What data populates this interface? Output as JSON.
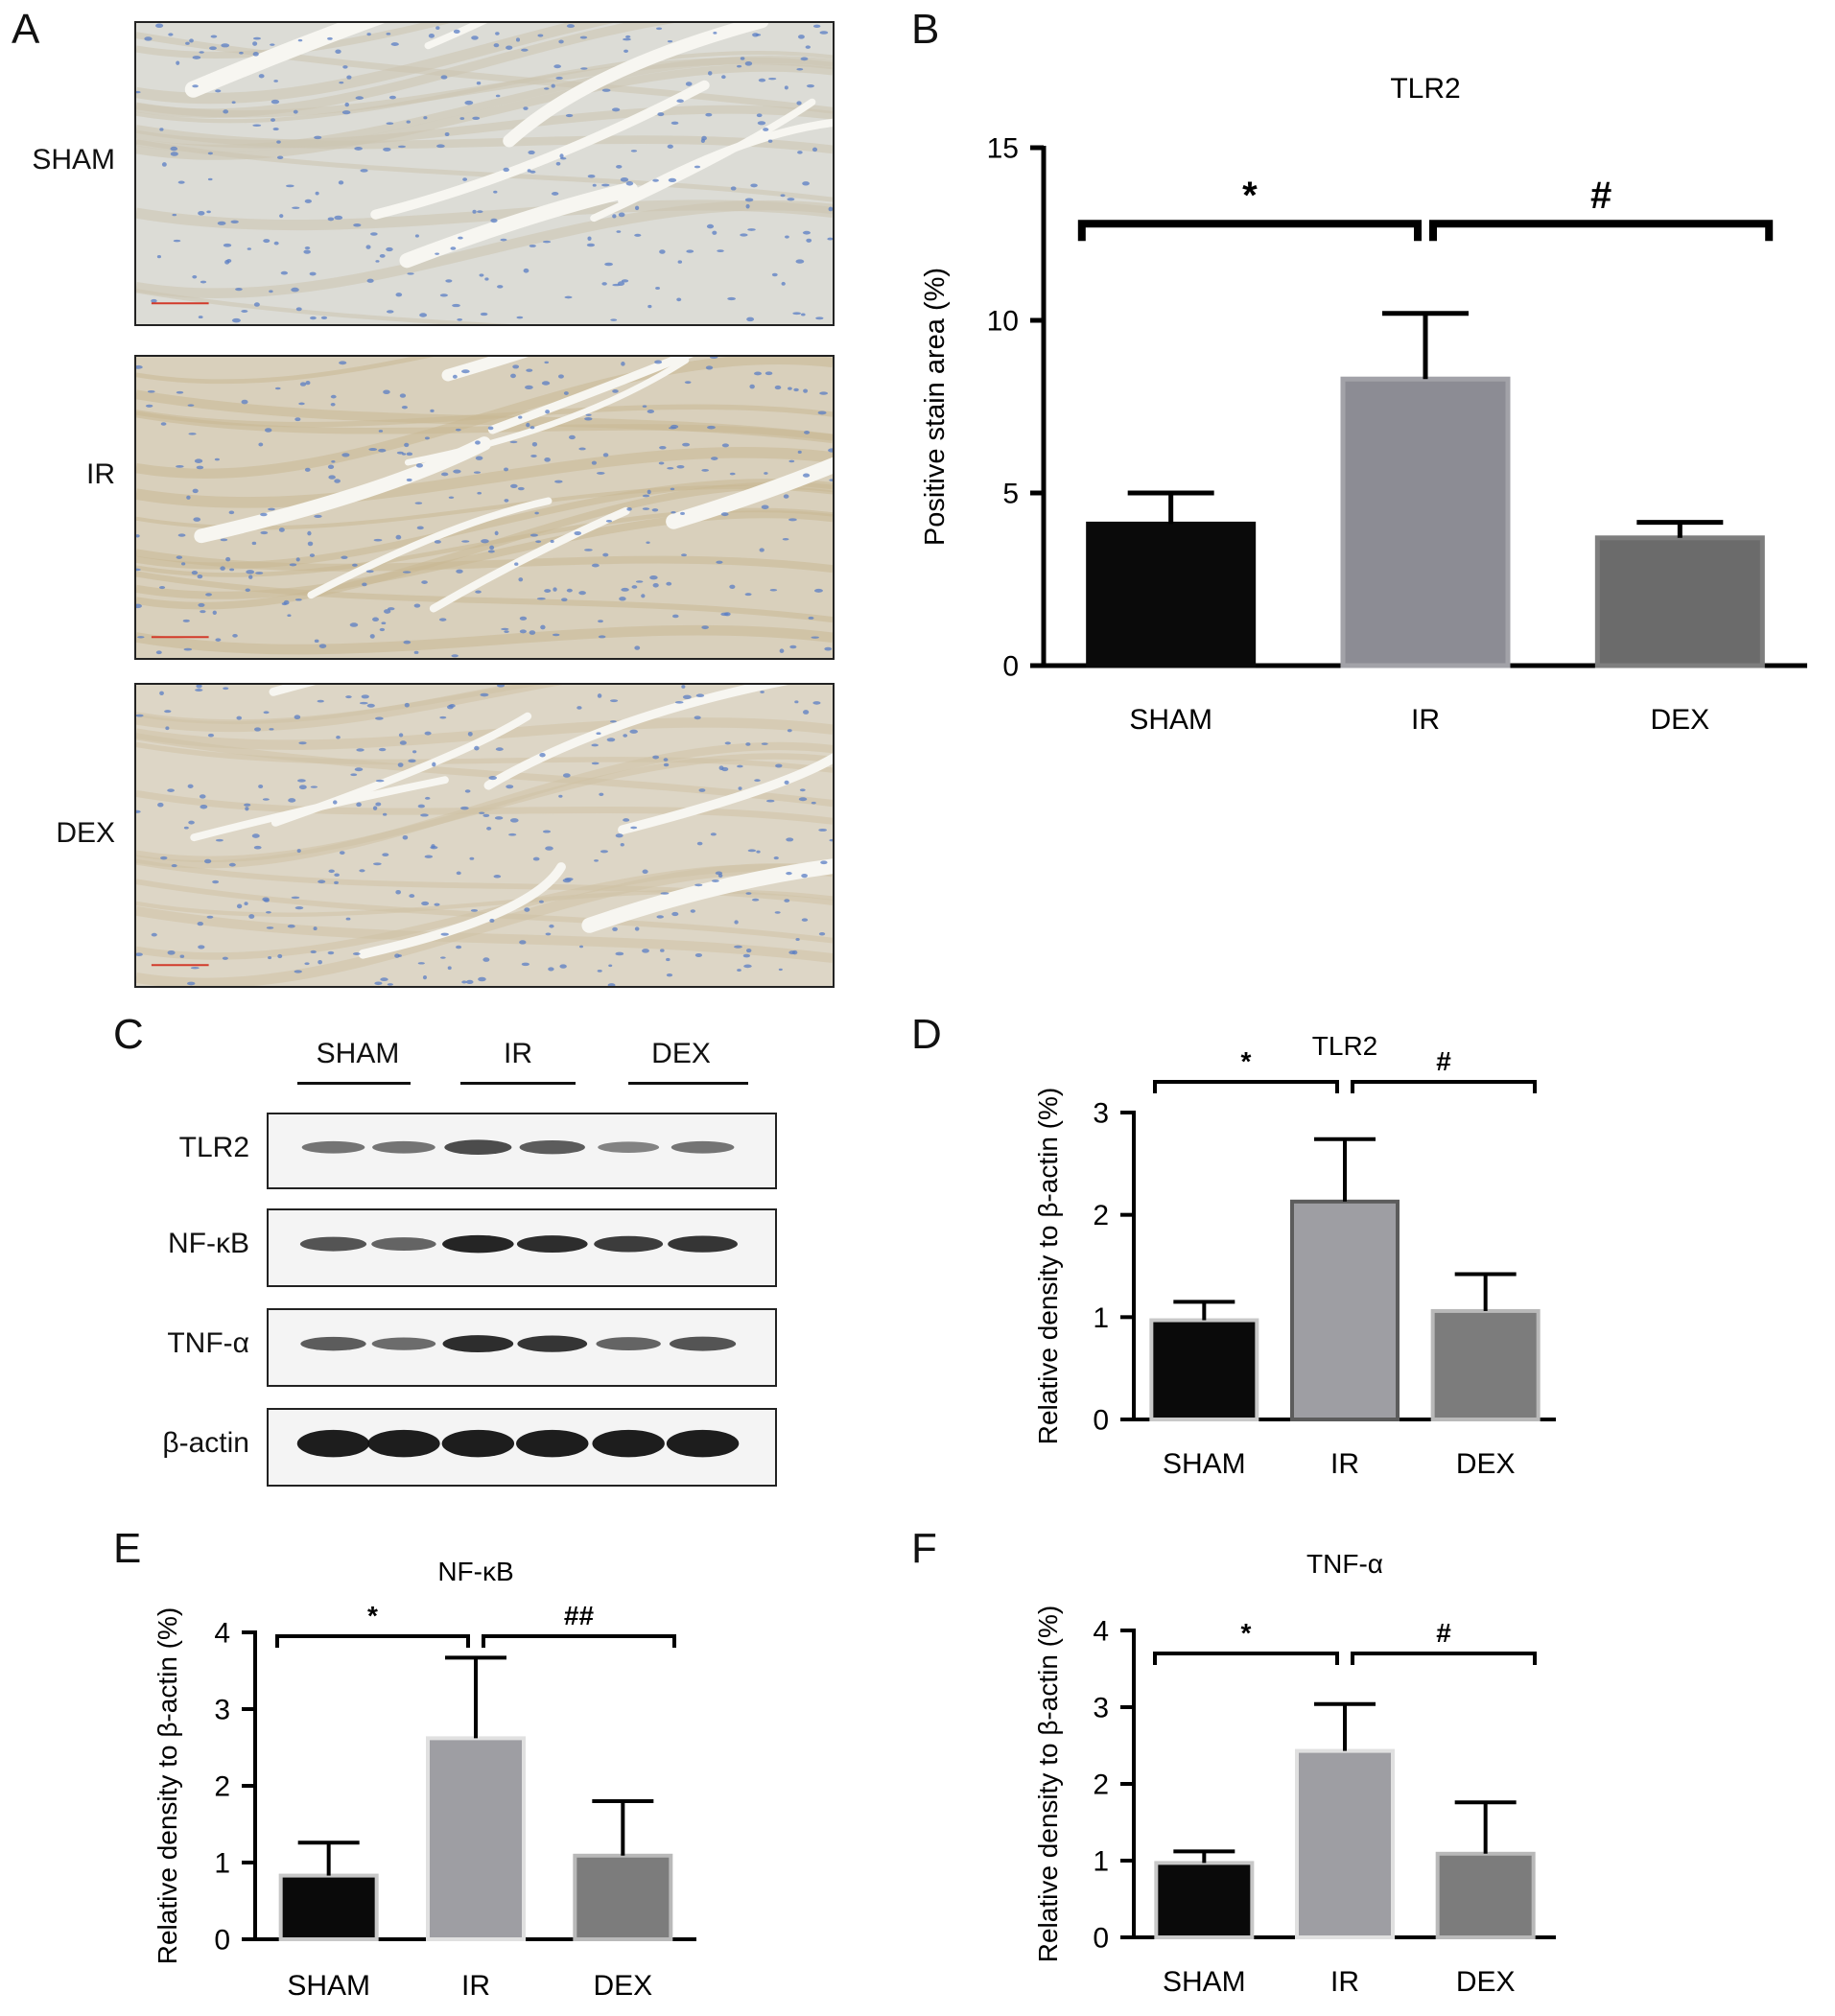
{
  "figure": {
    "panel_letters": [
      "A",
      "B",
      "C",
      "D",
      "E",
      "F"
    ],
    "panel_a": {
      "rows": [
        {
          "label": "SHAM",
          "tint": "#dcdcd6",
          "stain": "#ccc4b0"
        },
        {
          "label": "IR",
          "tint": "#d9d0bc",
          "stain": "#c9b894"
        },
        {
          "label": "DEX",
          "tint": "#ddd6c6",
          "stain": "#cfc3a6"
        }
      ],
      "nucleus_color": "#5a7ec4",
      "scale_bar_color": "#d23a2a"
    },
    "panel_c": {
      "groups": [
        "SHAM",
        "IR",
        "DEX"
      ],
      "proteins": [
        {
          "label": "TLR2",
          "intensity": [
            0.45,
            0.45,
            0.7,
            0.6,
            0.35,
            0.45
          ]
        },
        {
          "label": "NF-κB",
          "intensity": [
            0.65,
            0.55,
            0.95,
            0.9,
            0.8,
            0.85
          ]
        },
        {
          "label": "TNF-α",
          "intensity": [
            0.6,
            0.5,
            0.9,
            0.85,
            0.55,
            0.65
          ]
        },
        {
          "label": "β-actin",
          "intensity": [
            1.0,
            1.0,
            1.0,
            1.0,
            1.0,
            1.0
          ]
        }
      ]
    }
  },
  "chart_data": [
    {
      "id": "B",
      "type": "bar",
      "title": "TLR2",
      "ylabel": "Positive stain area (%)",
      "xlabel": "",
      "categories": [
        "SHAM",
        "IR",
        "DEX"
      ],
      "values": [
        4.1,
        8.3,
        3.7
      ],
      "errors": [
        0.9,
        1.9,
        0.45
      ],
      "colors": [
        "#0a0a0a",
        "#8c8c94",
        "#6b6b6b"
      ],
      "borders": [
        "#0a0a0a",
        "#a2a2a8",
        "#7e7e7e"
      ],
      "ylim": [
        0,
        15
      ],
      "yticks": [
        0,
        5,
        10,
        15
      ],
      "significance": [
        {
          "from": 0,
          "to": 1,
          "label": "*",
          "level": 12.8
        },
        {
          "from": 1,
          "to": 2,
          "label": "#",
          "level": 12.8
        }
      ]
    },
    {
      "id": "D",
      "type": "bar",
      "title": "TLR2",
      "ylabel": "Relative density to β-actin (%)",
      "xlabel": "",
      "categories": [
        "SHAM",
        "IR",
        "DEX"
      ],
      "values": [
        0.97,
        2.13,
        1.06
      ],
      "errors": [
        0.18,
        0.61,
        0.36
      ],
      "colors": [
        "#0a0a0a",
        "#9e9ea3",
        "#7c7c7c"
      ],
      "borders": [
        "#c8c8c8",
        "#5c5c5c",
        "#b9b9b9"
      ],
      "ylim": [
        0,
        3
      ],
      "yticks": [
        0,
        1,
        2,
        3
      ],
      "significance": [
        {
          "from": 0,
          "to": 1,
          "label": "*",
          "level": 3.3
        },
        {
          "from": 1,
          "to": 2,
          "label": "#",
          "level": 3.3
        }
      ]
    },
    {
      "id": "E",
      "type": "bar",
      "title": "NF-κB",
      "ylabel": "Relative density to β-actin (%)",
      "xlabel": "",
      "categories": [
        "SHAM",
        "IR",
        "DEX"
      ],
      "values": [
        0.83,
        2.62,
        1.09
      ],
      "errors": [
        0.43,
        1.05,
        0.71
      ],
      "colors": [
        "#0a0a0a",
        "#9e9ea3",
        "#7c7c7c"
      ],
      "borders": [
        "#c8c8c8",
        "#e0e0e0",
        "#b9b9b9"
      ],
      "ylim": [
        0,
        4
      ],
      "yticks": [
        0,
        1,
        2,
        3,
        4
      ],
      "significance": [
        {
          "from": 0,
          "to": 1,
          "label": "*",
          "level": 3.95
        },
        {
          "from": 1,
          "to": 2,
          "label": "##",
          "level": 3.95
        }
      ]
    },
    {
      "id": "F",
      "type": "bar",
      "title": "TNF-α",
      "ylabel": "Relative density to β-actin (%)",
      "xlabel": "",
      "categories": [
        "SHAM",
        "IR",
        "DEX"
      ],
      "values": [
        0.97,
        2.43,
        1.09
      ],
      "errors": [
        0.15,
        0.61,
        0.67
      ],
      "colors": [
        "#0a0a0a",
        "#9e9ea3",
        "#7c7c7c"
      ],
      "borders": [
        "#c8c8c8",
        "#e0e0e0",
        "#b9b9b9"
      ],
      "ylim": [
        0,
        4
      ],
      "yticks": [
        0,
        1,
        2,
        3,
        4
      ],
      "significance": [
        {
          "from": 0,
          "to": 1,
          "label": "*",
          "level": 3.7
        },
        {
          "from": 1,
          "to": 2,
          "label": "#",
          "level": 3.7
        }
      ]
    }
  ]
}
